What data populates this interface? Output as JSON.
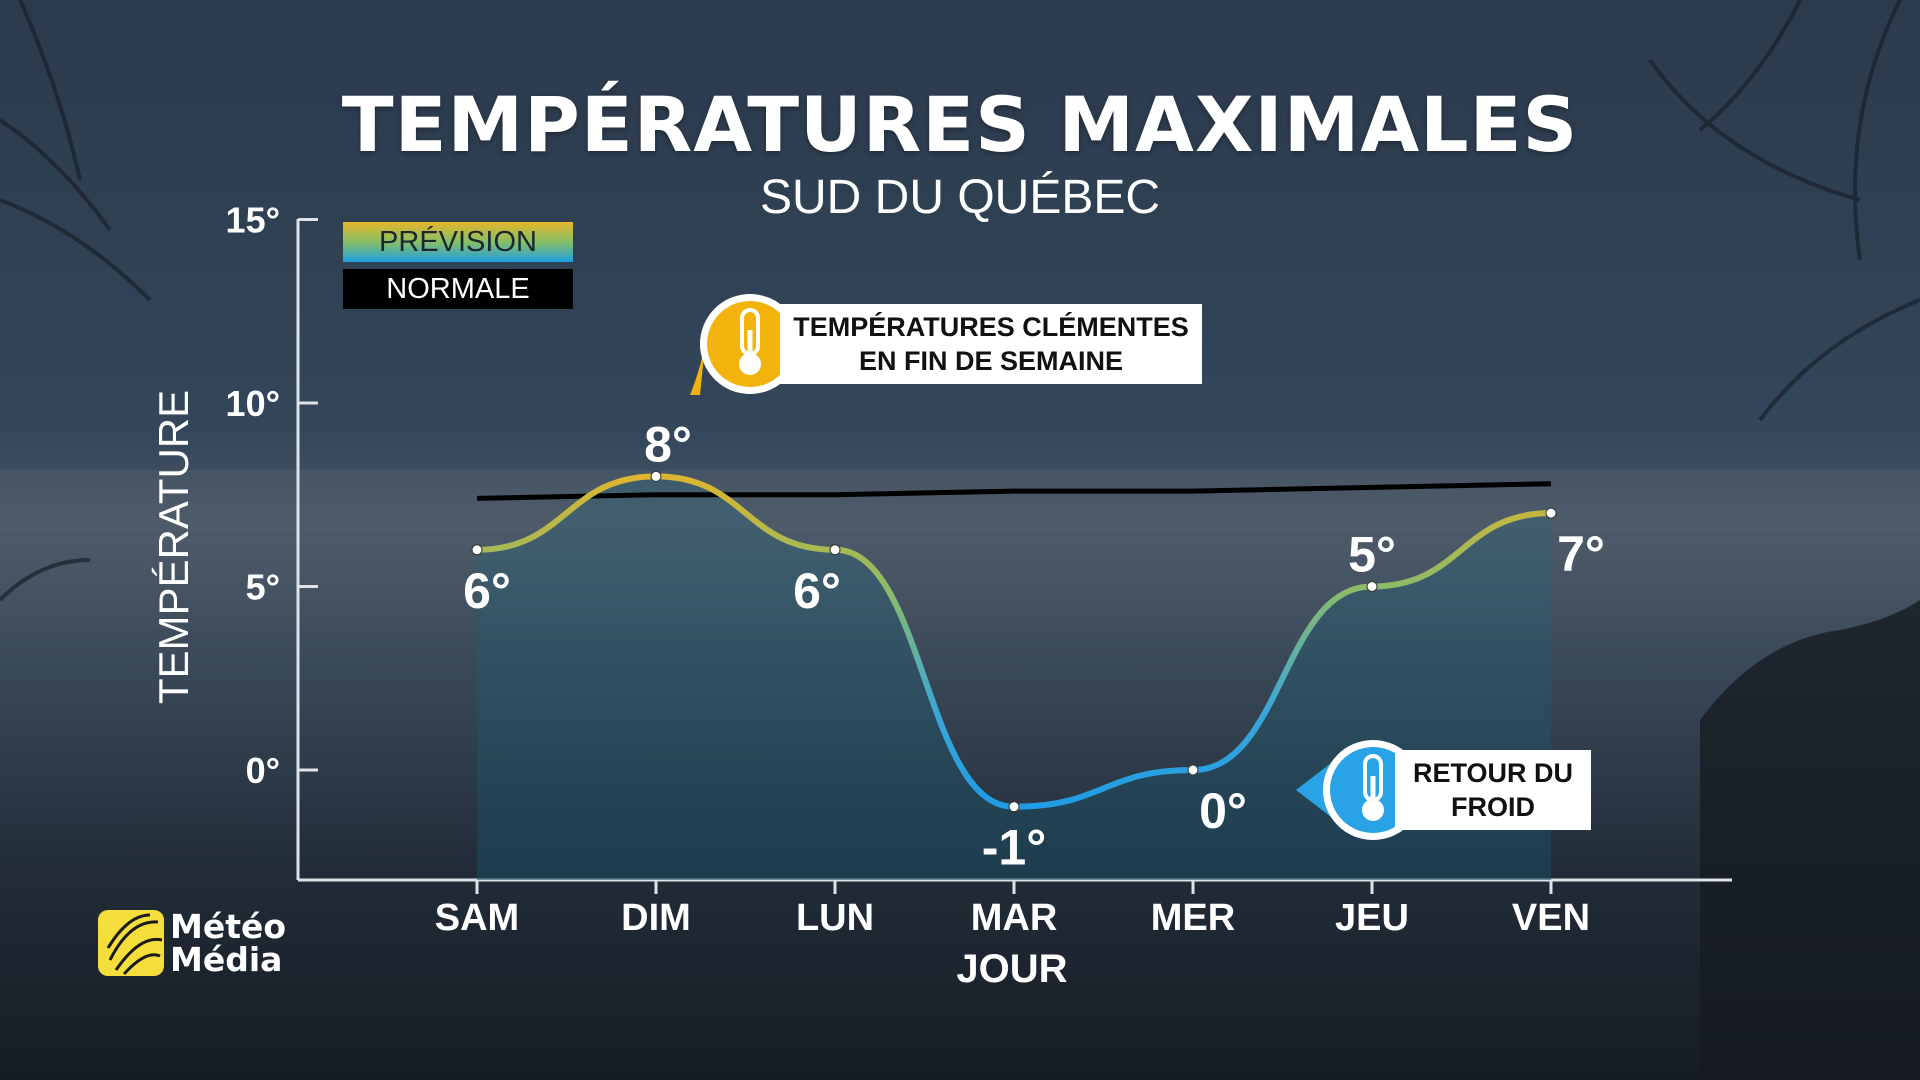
{
  "title": "TEMPÉRATURES MAXIMALES",
  "subtitle": "SUD DU QUÉBEC",
  "legend": {
    "forecast": "PRÉVISION",
    "normal": "NORMALE"
  },
  "callouts": {
    "warm": {
      "line1": "TEMPÉRATURES CLÉMENTES",
      "line2": "EN FIN DE SEMAINE",
      "icon": "thermometer-icon",
      "color": "#f2b40c"
    },
    "cold": {
      "line1": "RETOUR DU",
      "line2": "FROID",
      "icon": "thermometer-icon",
      "color": "#2aa3e6"
    }
  },
  "brand": {
    "line1": "Météo",
    "line2": "Média",
    "color": "#f5dd3b"
  },
  "chart_data": {
    "type": "line",
    "title": "TEMPÉRATURES MAXIMALES",
    "subtitle": "SUD DU QUÉBEC",
    "xlabel": "JOUR",
    "ylabel": "TEMPÉRATURE",
    "categories": [
      "SAM",
      "DIM",
      "LUN",
      "MAR",
      "MER",
      "JEU",
      "VEN"
    ],
    "yticks": [
      0,
      5,
      10,
      15
    ],
    "ytick_labels": [
      "0°",
      "5°",
      "10°",
      "15°"
    ],
    "ylim": [
      -3,
      15
    ],
    "series": [
      {
        "name": "PRÉVISION",
        "values": [
          6,
          8,
          6,
          -1,
          0,
          5,
          7
        ],
        "labels": [
          "6°",
          "8°",
          "6°",
          "-1°",
          "0°",
          "5°",
          "7°"
        ],
        "gradient": [
          "#e7b52a",
          "#86bf66",
          "#1f9fe3"
        ]
      },
      {
        "name": "NORMALE",
        "values": [
          7.4,
          7.5,
          7.5,
          7.6,
          7.6,
          7.7,
          7.8
        ],
        "color": "#000000"
      }
    ],
    "grid": false,
    "legend_position": "top-left"
  }
}
